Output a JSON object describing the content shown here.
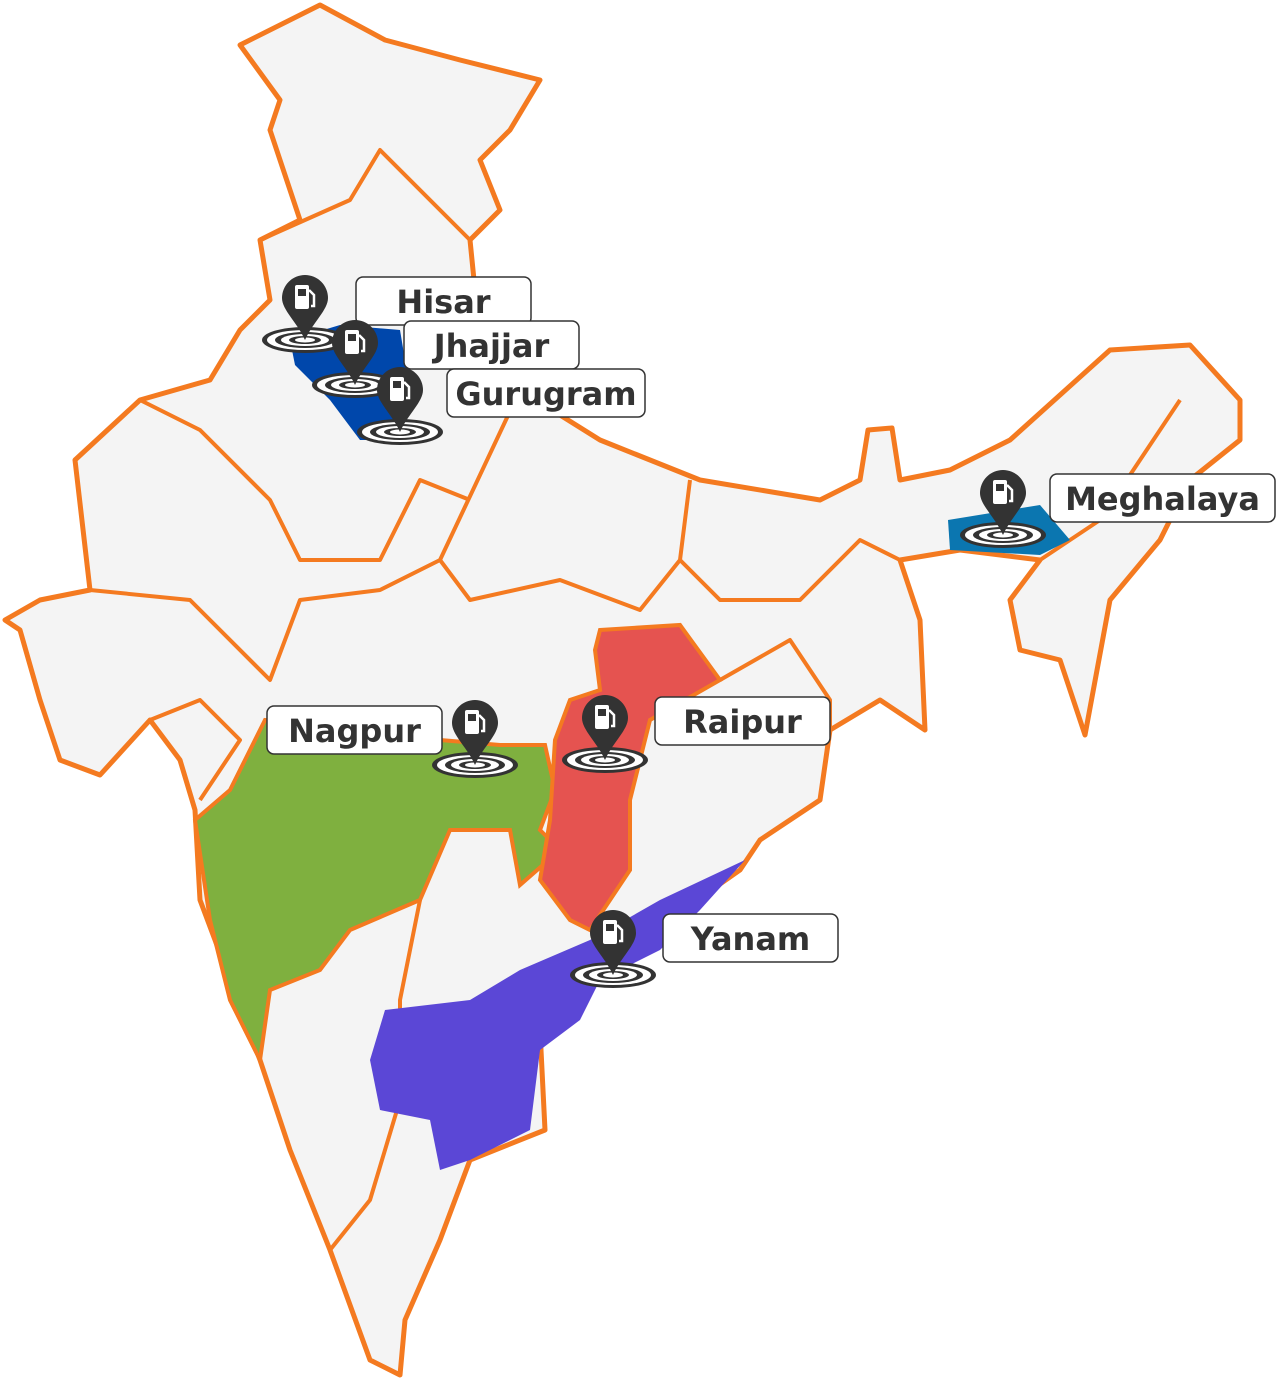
{
  "map": {
    "region": "India",
    "colors": {
      "land": "#f4f4f4",
      "border": "#f47a20",
      "marker": "#333333"
    },
    "highlighted_regions": [
      {
        "name": "Haryana",
        "color": "#0047ab"
      },
      {
        "name": "Meghalaya",
        "color": "#0b76b0"
      },
      {
        "name": "Maharashtra",
        "color": "#7fb03f"
      },
      {
        "name": "Chhattisgarh",
        "color": "#e55350"
      },
      {
        "name": "Andhra Pradesh",
        "color": "#5b47d6"
      }
    ],
    "markers": [
      {
        "label": "Hisar",
        "icon": "fuel-pump-pin-icon"
      },
      {
        "label": "Jhajjar",
        "icon": "fuel-pump-pin-icon"
      },
      {
        "label": "Gurugram",
        "icon": "fuel-pump-pin-icon"
      },
      {
        "label": "Meghalaya",
        "icon": "fuel-pump-pin-icon"
      },
      {
        "label": "Nagpur",
        "icon": "fuel-pump-pin-icon"
      },
      {
        "label": "Raipur",
        "icon": "fuel-pump-pin-icon"
      },
      {
        "label": "Yanam",
        "icon": "fuel-pump-pin-icon"
      }
    ]
  }
}
